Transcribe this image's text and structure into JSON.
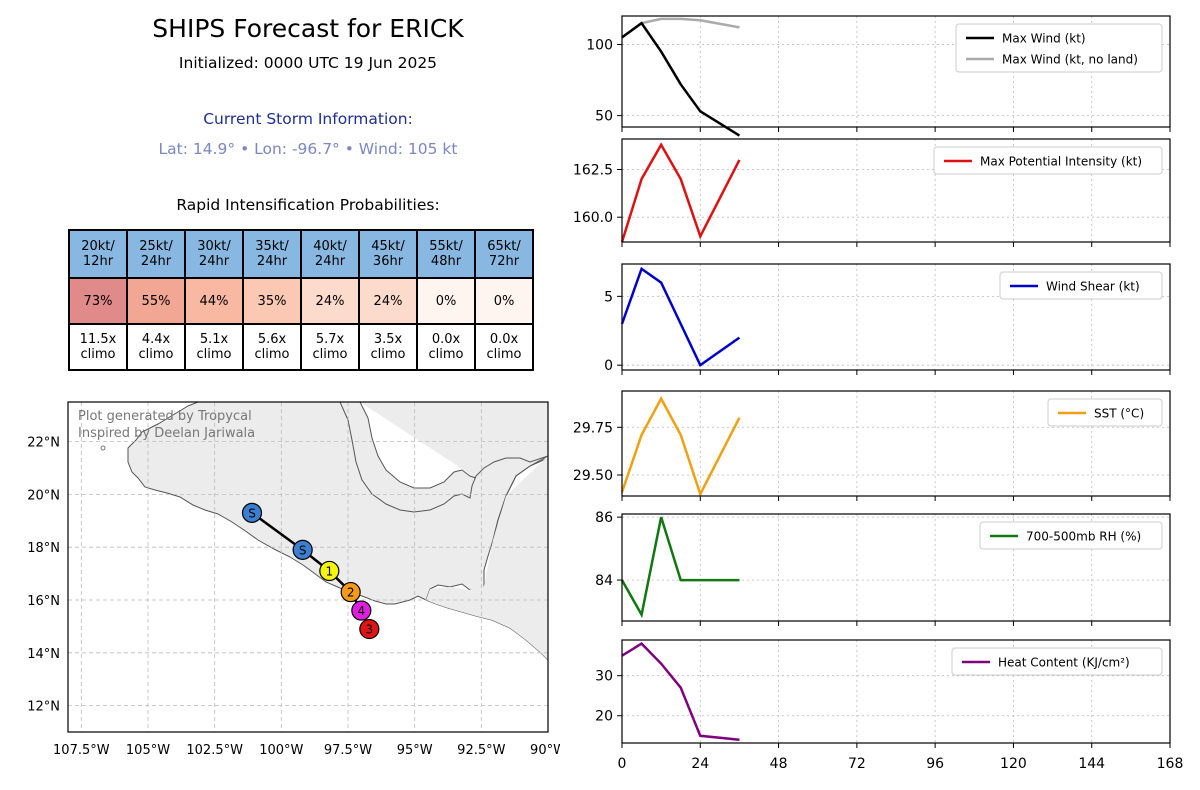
{
  "header": {
    "title": "SHIPS Forecast for ERICK",
    "initialized": "Initialized: 0000 UTC 19 Jun 2025",
    "storm_info_heading": "Current Storm Information:",
    "storm_info": "Lat: 14.9°  • Lon: -96.7°  • Wind: 105 kt"
  },
  "ri_table": {
    "title": "Rapid Intensification Probabilities:",
    "columns": [
      {
        "header": [
          "20kt/",
          "12hr"
        ],
        "prob": "73%",
        "climo": [
          "11.5x",
          "climo"
        ],
        "color": "#e08a8a"
      },
      {
        "header": [
          "25kt/",
          "24hr"
        ],
        "prob": "55%",
        "climo": [
          "4.4x",
          "climo"
        ],
        "color": "#f1a793"
      },
      {
        "header": [
          "30kt/",
          "24hr"
        ],
        "prob": "44%",
        "climo": [
          "5.1x",
          "climo"
        ],
        "color": "#f9b8a2"
      },
      {
        "header": [
          "35kt/",
          "24hr"
        ],
        "prob": "35%",
        "climo": [
          "5.6x",
          "climo"
        ],
        "color": "#fbc8b4"
      },
      {
        "header": [
          "40kt/",
          "24hr"
        ],
        "prob": "24%",
        "climo": [
          "5.7x",
          "climo"
        ],
        "color": "#fddbcc"
      },
      {
        "header": [
          "45kt/",
          "36hr"
        ],
        "prob": "24%",
        "climo": [
          "3.5x",
          "climo"
        ],
        "color": "#fddbcc"
      },
      {
        "header": [
          "55kt/",
          "48hr"
        ],
        "prob": "0%",
        "climo": [
          "0.0x",
          "climo"
        ],
        "color": "#fff5f0"
      },
      {
        "header": [
          "65kt/",
          "72hr"
        ],
        "prob": "0%",
        "climo": [
          "0.0x",
          "climo"
        ],
        "color": "#fff5f0"
      }
    ]
  },
  "map": {
    "credit_line1": "Plot generated by Tropycal",
    "credit_line2": "Inspired by Deelan Jariwala",
    "lat_labels": [
      "22°N",
      "20°N",
      "18°N",
      "16°N",
      "14°N",
      "12°N"
    ],
    "lat_values": [
      22,
      20,
      18,
      16,
      14,
      12
    ],
    "lon_labels": [
      "107.5°W",
      "105°W",
      "102.5°W",
      "100°W",
      "97.5°W",
      "95°W",
      "92.5°W",
      "90°W"
    ],
    "lon_values": [
      -107.5,
      -105,
      -102.5,
      -100,
      -97.5,
      -95,
      -92.5,
      -90
    ],
    "track": [
      {
        "lat": 19.3,
        "lon": -101.1,
        "label": "S",
        "color": "#3a7fd0"
      },
      {
        "lat": 17.9,
        "lon": -99.2,
        "label": "S",
        "color": "#3a7fd0"
      },
      {
        "lat": 17.1,
        "lon": -98.2,
        "label": "1",
        "color": "#f4f40c"
      },
      {
        "lat": 16.3,
        "lon": -97.4,
        "label": "2",
        "color": "#f49b1a"
      },
      {
        "lat": 15.6,
        "lon": -97.0,
        "label": "4",
        "color": "#e01ee0"
      },
      {
        "lat": 14.9,
        "lon": -96.7,
        "label": "3",
        "color": "#e01414"
      }
    ]
  },
  "x_axis": {
    "ticks": [
      0,
      24,
      48,
      72,
      96,
      120,
      144,
      168
    ]
  },
  "chart_data": [
    {
      "type": "line",
      "ylim": [
        42,
        120
      ],
      "yticks": [
        50,
        100
      ],
      "ytick_labels": [
        "50",
        "100"
      ],
      "x": [
        0,
        6,
        12,
        18,
        24,
        36
      ],
      "series": [
        {
          "name": "Max Wind (kt)",
          "color": "#000000",
          "values": [
            105,
            115,
            95,
            72,
            53,
            36
          ]
        },
        {
          "name": "Max Wind (kt, no land)",
          "color": "#aaaaaa",
          "values": [
            105,
            115,
            118,
            118,
            117,
            112
          ]
        }
      ]
    },
    {
      "type": "line",
      "ylim": [
        158.7,
        164.1
      ],
      "yticks": [
        160.0,
        162.5
      ],
      "ytick_labels": [
        "160.0",
        "162.5"
      ],
      "x": [
        0,
        6,
        12,
        18,
        24,
        36
      ],
      "series": [
        {
          "name": "Max Potential Intensity (kt)",
          "color": "#dd1111",
          "values": [
            158.7,
            162.0,
            163.8,
            162.0,
            159.0,
            163.0
          ]
        }
      ]
    },
    {
      "type": "line",
      "ylim": [
        -0.35,
        7.35
      ],
      "yticks": [
        0,
        5
      ],
      "ytick_labels": [
        "0",
        "5"
      ],
      "x": [
        0,
        6,
        12,
        18,
        24,
        36
      ],
      "series": [
        {
          "name": "Wind Shear (kt)",
          "color": "#0000cc",
          "values": [
            3,
            7,
            6,
            3,
            0,
            2
          ]
        }
      ]
    },
    {
      "type": "line",
      "ylim": [
        29.39,
        29.94
      ],
      "yticks": [
        29.5,
        29.75
      ],
      "ytick_labels": [
        "29.50",
        "29.75"
      ],
      "x": [
        0,
        6,
        12,
        18,
        24,
        36
      ],
      "series": [
        {
          "name": "SST (°C)",
          "color": "#f0a012",
          "values": [
            29.41,
            29.71,
            29.9,
            29.71,
            29.4,
            29.8
          ]
        }
      ]
    },
    {
      "type": "line",
      "ylim": [
        82.7,
        86.1
      ],
      "yticks": [
        84,
        86
      ],
      "ytick_labels": [
        "84",
        "86"
      ],
      "x": [
        0,
        6,
        12,
        18,
        24,
        36
      ],
      "series": [
        {
          "name": "700-500mb RH (%)",
          "color": "#117711",
          "values": [
            84,
            82.9,
            86,
            84,
            84,
            84
          ]
        }
      ]
    },
    {
      "type": "line",
      "ylim": [
        13.2,
        38.9
      ],
      "yticks": [
        20,
        30
      ],
      "ytick_labels": [
        "20",
        "30"
      ],
      "x": [
        0,
        6,
        12,
        18,
        24,
        36
      ],
      "series": [
        {
          "name": "Heat Content (KJ/cm²)",
          "color": "#7f007f",
          "values": [
            35,
            38,
            33,
            27,
            15,
            14
          ]
        }
      ]
    }
  ]
}
